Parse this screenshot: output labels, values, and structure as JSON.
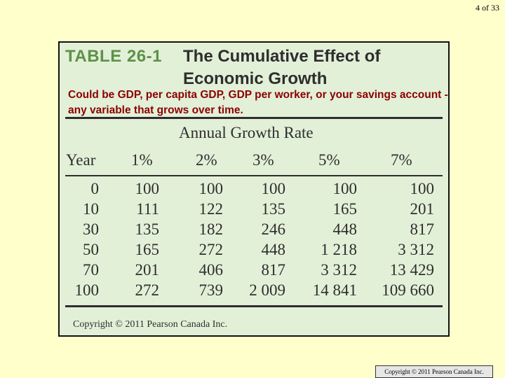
{
  "slide": {
    "page_number": "4 of 33",
    "note": "Could be GDP, per capita GDP, GDP per worker, or your savings account - any variable that grows over time.",
    "footer": "Copyright © 2011 Pearson Canada Inc."
  },
  "table": {
    "label": "TABLE 26-1",
    "title": "The Cumulative Effect of Economic Growth",
    "group_header": "Annual Growth Rate",
    "columns": [
      "Year",
      "1%",
      "2%",
      "3%",
      "5%",
      "7%"
    ],
    "rows": [
      [
        "0",
        "100",
        "100",
        "100",
        "100",
        "100"
      ],
      [
        "10",
        "111",
        "122",
        "135",
        "165",
        "201"
      ],
      [
        "30",
        "135",
        "182",
        "246",
        "448",
        "817"
      ],
      [
        "50",
        "165",
        "272",
        "448",
        "1 218",
        "3 312"
      ],
      [
        "70",
        "201",
        "406",
        "817",
        "3 312",
        "13 429"
      ],
      [
        "100",
        "272",
        "739",
        "2 009",
        "14 841",
        "109 660"
      ]
    ],
    "copyright": "Copyright © 2011 Pearson Canada Inc."
  }
}
